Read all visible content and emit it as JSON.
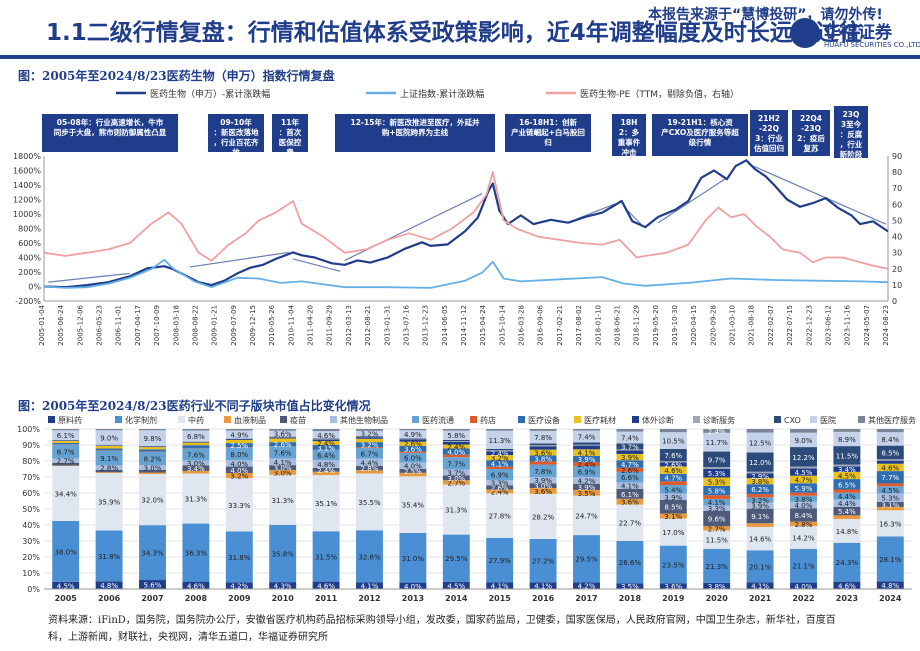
{
  "header": {
    "title": "1.1二级行情复盘：行情和估值体系受政策影响，近4年调整幅度及时长远超过往",
    "watermark": "本报告来源于“慧博投研”，请勿外传!",
    "logo_cn": "华福证券",
    "logo_en": "HUAFU SECURITIES CO.,LTD."
  },
  "colors": {
    "index": "#1f3d8a",
    "sse": "#64b0e6",
    "pe": "#f0a0a0",
    "header": "#1f3d8a"
  },
  "source": "资料来源：iFinD，国务院，国务院办公厅，安徽省医疗机构药品招标采购领导小组，发改委，国家药监局，卫健委，国家医保局，人民政府官网，中国卫生杂志，新华社，百度百科，上游新闻，财联社，央视网，清华五道口，华福证券研究所",
  "chart_data": [
    {
      "type": "line",
      "title": "图：2005年至2024/8/23医药生物（申万）指数行情复盘",
      "legend": [
        "医药生物（申万）-累计涨跌幅",
        "上证指数-累计涨跌幅",
        "医药生物-PE（TTM，剔除负值，右轴）"
      ],
      "ylim": [
        -200,
        1800
      ],
      "yticks": [
        "-200%",
        "0%",
        "200%",
        "400%",
        "600%",
        "800%",
        "1000%",
        "1200%",
        "1400%",
        "1600%",
        "1800%"
      ],
      "y2lim": [
        0,
        90
      ],
      "y2ticks": [
        "0",
        "10",
        "20",
        "30",
        "40",
        "50",
        "60",
        "70",
        "80",
        "90"
      ],
      "xlim": [
        2005.0,
        2024.65
      ],
      "x_tick_labels": [
        "2005-01-04",
        "2005-06-24",
        "2005-12-06",
        "2006-05-23",
        "2006-11-01",
        "2007-04-17",
        "2007-10-09",
        "2008-03-18",
        "2008-08-22",
        "2009-01-21",
        "2009-07-09",
        "2009-12-15",
        "2010-05-26",
        "2010-11-04",
        "2011-04-20",
        "2011-09-29",
        "2012-03-13",
        "2012-08-21",
        "2013-01-31",
        "2013-07-16",
        "2013-12-23",
        "2014-06-05",
        "2014-11-12",
        "2015-04-24",
        "2015-10-14",
        "2016-03-28",
        "2016-09-06",
        "2017-02-21",
        "2017-08-02",
        "2018-01-10",
        "2018-06-21",
        "2018-11-29",
        "2019-05-20",
        "2019-10-30",
        "2020-04-15",
        "2020-09-28",
        "2021-03-10",
        "2021-08-18",
        "2022-02-07",
        "2022-07-15",
        "2022-12-23",
        "2023-06-12",
        "2023-11-16",
        "2024-05-07",
        "2024-08-23"
      ],
      "annotations": [
        {
          "text": "05-08年：行业高速增长，牛市同步于大盘，熊市则防御属性凸显"
        },
        {
          "text": "09-10年：新医改落地，行业百花齐放"
        },
        {
          "text": "11年：首次医保控费"
        },
        {
          "text": "12-15年：新医改推进至医疗，外延并购+医院跨界为主线"
        },
        {
          "text": "16-18H1：创新产业链崛起+白马股回归"
        },
        {
          "text": "18H2：多重事件冲击"
        },
        {
          "text": "19-21H1：核心资产CXO及医疗服务等超级行情"
        },
        {
          "text": "21H2-22Q3：行业估值回归"
        },
        {
          "text": "22Q4-23Q2：疫后复苏"
        },
        {
          "text": "23Q3至今：反腐，行业新阶段"
        }
      ],
      "series": [
        {
          "name": "医药生物（申万）-累计涨跌幅",
          "axis": "left",
          "x": [
            2005.0,
            2005.5,
            2006.0,
            2006.5,
            2007.0,
            2007.4,
            2007.8,
            2008.0,
            2008.3,
            2008.6,
            2008.9,
            2009.2,
            2009.5,
            2009.8,
            2010.1,
            2010.4,
            2010.8,
            2011.0,
            2011.3,
            2011.7,
            2012.0,
            2012.3,
            2012.6,
            2013.0,
            2013.4,
            2013.8,
            2014.0,
            2014.4,
            2014.8,
            2015.1,
            2015.35,
            2015.45,
            2015.6,
            2015.8,
            2016.1,
            2016.4,
            2016.8,
            2017.2,
            2017.6,
            2018.0,
            2018.45,
            2018.7,
            2019.0,
            2019.3,
            2019.7,
            2020.0,
            2020.3,
            2020.6,
            2020.9,
            2021.1,
            2021.35,
            2021.55,
            2021.8,
            2022.0,
            2022.3,
            2022.6,
            2022.9,
            2023.2,
            2023.5,
            2023.8,
            2024.0,
            2024.3,
            2024.65
          ],
          "y": [
            0,
            -10,
            20,
            60,
            140,
            250,
            280,
            240,
            150,
            60,
            20,
            80,
            180,
            260,
            300,
            380,
            470,
            430,
            400,
            320,
            300,
            360,
            330,
            400,
            520,
            610,
            560,
            580,
            760,
            950,
            1320,
            1420,
            1050,
            860,
            980,
            860,
            920,
            880,
            960,
            1020,
            1180,
            900,
            820,
            960,
            1060,
            1180,
            1500,
            1600,
            1480,
            1660,
            1740,
            1620,
            1520,
            1400,
            1200,
            1100,
            1150,
            1220,
            1080,
            980,
            860,
            900,
            760
          ]
        },
        {
          "name": "上证指数-累计涨跌幅",
          "axis": "left",
          "x": [
            2005.0,
            2005.5,
            2006.0,
            2006.5,
            2007.0,
            2007.5,
            2007.8,
            2008.0,
            2008.5,
            2008.9,
            2009.5,
            2010.0,
            2010.5,
            2011.0,
            2012.0,
            2013.0,
            2014.0,
            2014.8,
            2015.2,
            2015.45,
            2015.7,
            2016.1,
            2017.0,
            2018.0,
            2018.5,
            2019.0,
            2020.0,
            2021.0,
            2022.0,
            2023.0,
            2024.0,
            2024.65
          ],
          "y": [
            0,
            -20,
            -10,
            40,
            120,
            240,
            370,
            250,
            70,
            -10,
            120,
            110,
            50,
            70,
            -10,
            -10,
            -20,
            80,
            190,
            340,
            110,
            70,
            100,
            130,
            40,
            10,
            50,
            110,
            90,
            80,
            70,
            60
          ]
        },
        {
          "name": "医药生物-PE（TTM，剔除负值，右轴）",
          "axis": "right",
          "x": [
            2005.0,
            2005.5,
            2006.0,
            2006.5,
            2007.0,
            2007.5,
            2007.9,
            2008.2,
            2008.6,
            2008.9,
            2009.3,
            2009.7,
            2010.0,
            2010.4,
            2010.8,
            2011.0,
            2011.5,
            2012.0,
            2012.5,
            2013.0,
            2013.5,
            2014.0,
            2014.5,
            2015.0,
            2015.3,
            2015.45,
            2015.7,
            2016.0,
            2016.5,
            2017.0,
            2017.5,
            2018.0,
            2018.4,
            2018.8,
            2019.0,
            2019.5,
            2020.0,
            2020.4,
            2020.7,
            2021.0,
            2021.3,
            2021.6,
            2021.9,
            2022.2,
            2022.6,
            2022.9,
            2023.2,
            2023.6,
            2024.0,
            2024.3,
            2024.65
          ],
          "y": [
            30,
            28,
            30,
            32,
            36,
            48,
            55,
            48,
            30,
            25,
            35,
            42,
            50,
            55,
            62,
            48,
            40,
            30,
            32,
            38,
            42,
            38,
            45,
            55,
            66,
            80,
            50,
            45,
            40,
            38,
            36,
            35,
            38,
            27,
            28,
            30,
            35,
            50,
            58,
            52,
            54,
            46,
            40,
            32,
            30,
            24,
            27,
            27,
            24,
            22,
            20
          ]
        }
      ]
    },
    {
      "type": "bar",
      "stacked": true,
      "title": "图：2005年至2024/8/23医药行业不同子版块市值占比变化情况",
      "ylim": [
        0,
        100
      ],
      "yticks": [
        "0%",
        "10%",
        "20%",
        "30%",
        "40%",
        "50%",
        "60%",
        "70%",
        "80%",
        "90%",
        "100%"
      ],
      "categories": [
        "2005",
        "2006",
        "2007",
        "2008",
        "2009",
        "2010",
        "2011",
        "2012",
        "2013",
        "2014",
        "2015",
        "2016",
        "2017",
        "2018",
        "2019",
        "2020",
        "2021",
        "2022",
        "2023",
        "2024"
      ],
      "segments": [
        "原料药",
        "化学制剂",
        "中药",
        "血液制品",
        "疫苗",
        "其他生物制品",
        "医药流通",
        "药店",
        "医疗设备",
        "医疗耗材",
        "体外诊断",
        "诊断服务",
        "CXO",
        "医院",
        "其他医疗服务"
      ],
      "segment_colors": [
        "#1f3d8a",
        "#4a8fd4",
        "#dfe6f0",
        "#e99a3f",
        "#4d5a7a",
        "#a8bde0",
        "#66a3d2",
        "#e05a2a",
        "#2e6eb0",
        "#e8c020",
        "#1f3d8a",
        "#a0a6b8",
        "#2c4a7a",
        "#c4d2ea",
        "#7a8698"
      ],
      "series": [
        {
          "name": "原料药",
          "values": [
            4.5,
            4.8,
            5.6,
            4.6,
            4.2,
            4.3,
            4.6,
            4.1,
            4.0,
            4.5,
            4.1,
            4.1,
            4.2,
            3.5,
            3.6,
            3.8,
            4.1,
            4.0,
            4.6,
            4.8
          ]
        },
        {
          "name": "化学制剂",
          "values": [
            38.0,
            31.8,
            34.3,
            36.3,
            31.8,
            35.8,
            31.5,
            32.6,
            31.0,
            29.5,
            27.9,
            27.2,
            29.5,
            26.6,
            23.5,
            21.3,
            20.1,
            21.1,
            24.3,
            28.1
          ]
        },
        {
          "name": "中药",
          "values": [
            34.4,
            35.9,
            32.0,
            31.3,
            33.3,
            31.3,
            35.1,
            35.5,
            35.4,
            31.3,
            27.8,
            28.2,
            24.7,
            22.7,
            17.0,
            11.5,
            14.6,
            14.2,
            14.8,
            16.3
          ]
        },
        {
          "name": "血液制品",
          "values": [
            0.3,
            0.5,
            0.9,
            1.6,
            3.2,
            3.0,
            2.1,
            2.0,
            2.2,
            2.7,
            2.4,
            3.6,
            3.5,
            3.6,
            3.1,
            2.7,
            2.3,
            2.8,
            2.3,
            2.1
          ]
        },
        {
          "name": "疫苗",
          "values": [
            1.7,
            1.5,
            1.7,
            3.4,
            4.0,
            3.0,
            2.4,
            2.8,
            2.5,
            3.0,
            2.6,
            3.0,
            3.9,
            6.1,
            8.5,
            9.6,
            9.1,
            8.4,
            5.4,
            3.1
          ]
        },
        {
          "name": "其他生物制品",
          "values": [
            2.7,
            2.8,
            3.0,
            3.0,
            4.0,
            4.1,
            4.8,
            4.4,
            4.0,
            3.7,
            3.3,
            3.9,
            4.2,
            4.1,
            3.9,
            3.3,
            3.9,
            4.0,
            4.4,
            5.3
          ]
        },
        {
          "name": "医药流通",
          "values": [
            8.7,
            9.1,
            8.2,
            7.6,
            8.0,
            7.6,
            6.4,
            6.7,
            6.0,
            7.7,
            6.9,
            7.8,
            6.9,
            6.6,
            5.4,
            4.1,
            3.2,
            3.8,
            4.4,
            4.5
          ]
        },
        {
          "name": "药店",
          "values": [
            0.2,
            0.2,
            0.2,
            0.2,
            0.2,
            0.1,
            0.1,
            0.5,
            0.8,
            1.5,
            1.4,
            1.9,
            2.4,
            2.6,
            2.3,
            2.3,
            2.0,
            1.9,
            2.0,
            1.8
          ]
        },
        {
          "name": "医疗设备",
          "values": [
            0.8,
            1.2,
            1.4,
            1.9,
            2.5,
            2.6,
            3.1,
            3.2,
            3.6,
            4.0,
            4.1,
            3.8,
            3.9,
            4.7,
            4.7,
            5.8,
            6.2,
            5.9,
            6.5,
            7.7
          ]
        },
        {
          "name": "医疗耗材",
          "values": [
            1.2,
            1.7,
            1.4,
            1.6,
            2.0,
            2.3,
            2.4,
            2.1,
            2.6,
            2.4,
            3.2,
            3.6,
            4.1,
            3.9,
            4.6,
            5.3,
            3.8,
            4.7,
            4.5,
            4.6
          ]
        },
        {
          "name": "体外诊断",
          "values": [
            0.3,
            0.4,
            0.4,
            0.5,
            0.6,
            0.7,
            0.9,
            1.0,
            1.5,
            1.7,
            2.4,
            2.1,
            2.3,
            2.2,
            2.6,
            5.3,
            2.9,
            4.5,
            3.4,
            1.9
          ]
        },
        {
          "name": "诊断服务",
          "values": [
            0.2,
            0.2,
            0.2,
            0.2,
            0.3,
            0.4,
            0.4,
            0.4,
            0.4,
            0.5,
            0.6,
            0.7,
            0.6,
            0.7,
            0.7,
            1.2,
            1.1,
            1.2,
            1.2,
            0.9
          ]
        },
        {
          "name": "CXO",
          "values": [
            0.1,
            0.1,
            0.1,
            0.1,
            0.1,
            0.1,
            0.3,
            0.3,
            0.3,
            0.7,
            0.9,
            1.1,
            1.4,
            3.7,
            7.6,
            9.7,
            12.0,
            12.2,
            11.5,
            8.5
          ]
        },
        {
          "name": "医院",
          "values": [
            6.1,
            9.0,
            9.8,
            6.8,
            4.9,
            3.6,
            4.6,
            3.2,
            4.9,
            5.8,
            11.3,
            7.8,
            7.4,
            7.4,
            10.5,
            11.7,
            12.5,
            9.0,
            8.9,
            8.4
          ]
        },
        {
          "name": "其他医疗服务",
          "values": [
            0.8,
            0.8,
            0.8,
            0.9,
            0.9,
            1.1,
            1.3,
            1.2,
            0.8,
            1.0,
            1.1,
            1.2,
            1.0,
            1.6,
            2.0,
            2.4,
            2.2,
            2.3,
            1.8,
            2.0
          ]
        }
      ]
    }
  ]
}
